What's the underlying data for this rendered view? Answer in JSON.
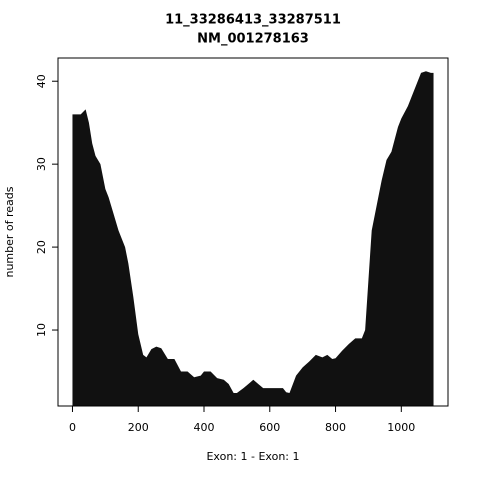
{
  "chart_data": {
    "type": "area",
    "title": "11_33286413_33287511",
    "subtitle": "NM_001278163",
    "x_label": "Exon: 1 - Exon: 1",
    "y_label": "number of reads",
    "color": "#111111",
    "x": [
      0,
      25,
      40,
      50,
      60,
      70,
      85,
      100,
      110,
      125,
      140,
      160,
      170,
      185,
      200,
      215,
      225,
      240,
      255,
      270,
      290,
      310,
      330,
      350,
      370,
      390,
      400,
      420,
      440,
      460,
      475,
      490,
      500,
      520,
      535,
      550,
      565,
      580,
      600,
      620,
      640,
      650,
      660,
      680,
      700,
      720,
      740,
      760,
      775,
      790,
      800,
      820,
      840,
      860,
      880,
      890,
      900,
      910,
      925,
      940,
      955,
      970,
      980,
      990,
      1000,
      1020,
      1040,
      1060,
      1075,
      1090,
      1098
    ],
    "values": [
      36,
      36,
      36.6,
      35,
      32.5,
      31,
      30,
      27,
      26,
      24,
      22,
      20,
      18,
      14,
      9.5,
      7,
      6.7,
      7.7,
      8,
      7.8,
      6.5,
      6.5,
      5,
      5,
      4.3,
      4.5,
      5,
      5,
      4.2,
      4,
      3.5,
      2.4,
      2.4,
      3,
      3.5,
      4,
      3.5,
      3,
      3,
      3,
      3,
      2.5,
      2.4,
      4.5,
      5.5,
      6.2,
      7,
      6.7,
      7,
      6.5,
      6.6,
      7.5,
      8.3,
      9,
      9,
      10,
      16,
      22,
      25,
      28,
      30.5,
      31.5,
      33,
      34.5,
      35.5,
      37,
      39,
      41,
      41.2,
      41,
      41
    ],
    "xlim": [
      -44,
      1142
    ],
    "ylim": [
      0.84,
      42.8
    ],
    "xticks": [
      0,
      200,
      400,
      600,
      800,
      1000
    ],
    "yticks": [
      10,
      20,
      30,
      40
    ]
  }
}
